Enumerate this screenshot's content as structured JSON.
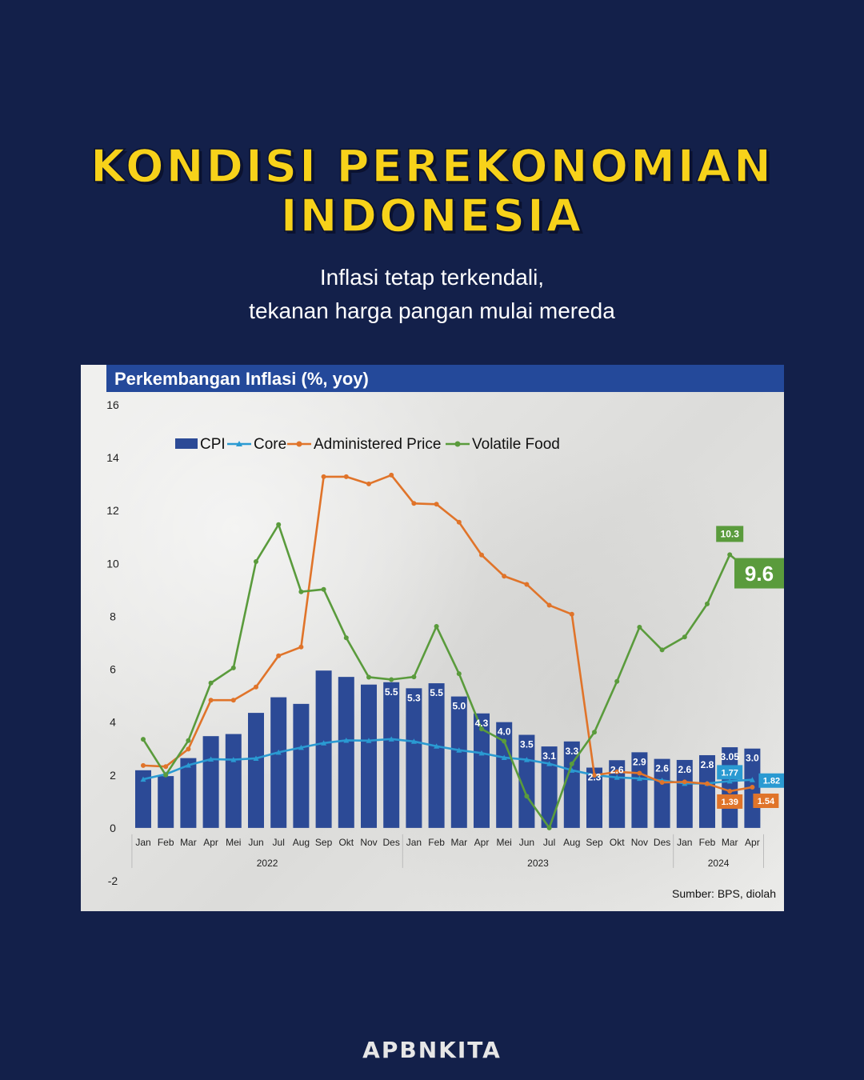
{
  "header": {
    "title_line1": "Kondisi Perekonomian",
    "title_line2": "Indonesia",
    "subtitle_line1": "Inflasi tetap terkendali,",
    "subtitle_line2": "tekanan harga pangan mulai mereda"
  },
  "colors": {
    "background": "#13204a",
    "title": "#f7d21a",
    "cpi": "#2c4a96",
    "core": "#2a9ad2",
    "administered": "#e0742a",
    "volatile": "#5a9b3c"
  },
  "chart_data": {
    "type": "bar",
    "title": "Perkembangan Inflasi (%, yoy)",
    "source": "Sumber: BPS, diolah",
    "categories": [
      "Jan",
      "Feb",
      "Mar",
      "Apr",
      "Mei",
      "Jun",
      "Jul",
      "Aug",
      "Sep",
      "Okt",
      "Nov",
      "Des",
      "Jan",
      "Feb",
      "Mar",
      "Apr",
      "Mei",
      "Jun",
      "Jul",
      "Aug",
      "Sep",
      "Okt",
      "Nov",
      "Des",
      "Jan",
      "Feb",
      "Mar",
      "Apr"
    ],
    "years": [
      {
        "label": "2022",
        "start": 0,
        "end": 11
      },
      {
        "label": "2023",
        "start": 12,
        "end": 23
      },
      {
        "label": "2024",
        "start": 24,
        "end": 27
      }
    ],
    "ylim": [
      -2,
      16
    ],
    "yticks": [
      "16",
      "14",
      "12",
      "10",
      "8",
      "6",
      "4",
      "2",
      "0",
      "-2"
    ],
    "ytick_values": [
      16,
      14,
      12,
      10,
      8,
      6,
      4,
      2,
      0,
      -2
    ],
    "legend": {
      "placement": "top-left",
      "items": [
        "CPI",
        "Core",
        "Administered Price",
        "Volatile Food"
      ]
    },
    "series": [
      {
        "name": "CPI",
        "type": "bar",
        "values": [
          2.18,
          1.96,
          2.64,
          3.47,
          3.55,
          4.35,
          4.94,
          4.69,
          5.95,
          5.71,
          5.42,
          5.51,
          5.28,
          5.47,
          4.97,
          4.33,
          4.0,
          3.52,
          3.08,
          3.27,
          2.28,
          2.56,
          2.86,
          2.61,
          2.57,
          2.75,
          3.05,
          3.0
        ],
        "labels": [
          "",
          "",
          "",
          "",
          "",
          "",
          "",
          "",
          "",
          "",
          "",
          "5.5",
          "5.3",
          "5.5",
          "5.0",
          "4.3",
          "4.0",
          "3.5",
          "3.1",
          "3.3",
          "2.3",
          "2.6",
          "2.9",
          "2.6",
          "2.6",
          "2.8",
          "3.05",
          "3.0"
        ]
      },
      {
        "name": "Core",
        "type": "line",
        "values": [
          1.84,
          2.03,
          2.37,
          2.6,
          2.58,
          2.63,
          2.86,
          3.04,
          3.21,
          3.31,
          3.3,
          3.36,
          3.27,
          3.09,
          2.94,
          2.83,
          2.66,
          2.58,
          2.43,
          2.18,
          2.0,
          1.91,
          1.87,
          1.8,
          1.68,
          1.68,
          1.77,
          1.82
        ]
      },
      {
        "name": "Administered Price",
        "type": "line",
        "values": [
          2.36,
          2.32,
          2.98,
          4.83,
          4.83,
          5.33,
          6.51,
          6.84,
          13.28,
          13.28,
          13.01,
          13.34,
          12.27,
          12.24,
          11.56,
          10.32,
          9.52,
          9.21,
          8.42,
          8.08,
          1.99,
          2.12,
          2.07,
          1.72,
          1.74,
          1.67,
          1.39,
          1.54
        ]
      },
      {
        "name": "Volatile Food",
        "type": "line",
        "values": [
          3.35,
          2.0,
          3.3,
          5.48,
          6.05,
          10.07,
          11.47,
          8.93,
          9.02,
          7.19,
          5.7,
          5.61,
          5.71,
          7.62,
          5.83,
          3.74,
          3.28,
          1.2,
          0.0,
          2.42,
          3.62,
          5.54,
          7.59,
          6.73,
          7.22,
          8.47,
          10.33,
          9.63
        ]
      }
    ],
    "callouts": [
      {
        "series": "Core",
        "index": 26,
        "text": "1.77"
      },
      {
        "series": "Core",
        "index": 27,
        "text": "1.82"
      },
      {
        "series": "Administered Price",
        "index": 26,
        "text": "1.39"
      },
      {
        "series": "Administered Price",
        "index": 27,
        "text": "1.54"
      },
      {
        "series": "Volatile Food",
        "index": 26,
        "text": "10.3"
      },
      {
        "series": "Volatile Food",
        "index": 27,
        "text": "9.6",
        "big": true
      }
    ]
  },
  "footer": {
    "logo": "APBNKITA"
  }
}
